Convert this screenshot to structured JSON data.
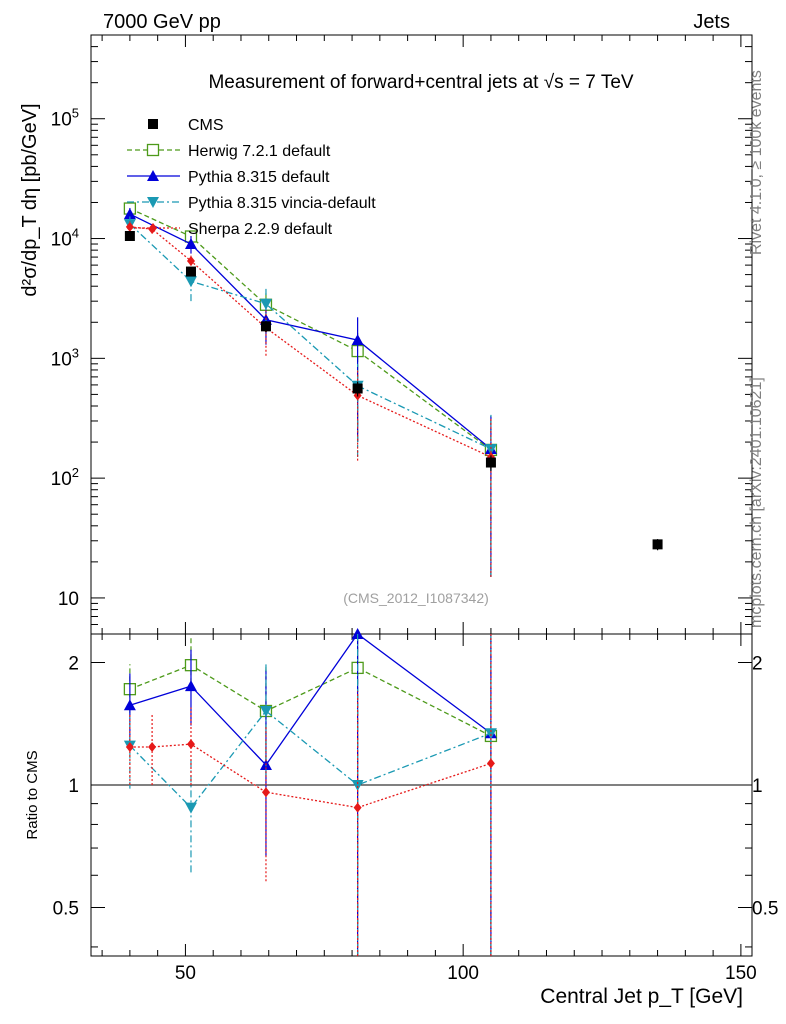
{
  "header": {
    "energy_label": "7000 GeV pp",
    "category_label": "Jets"
  },
  "side_labels": {
    "rivet": "Rivet 4.1.0, ≥ 100k events",
    "mcplots": "mcplots.cern.ch [arXiv:2401.10621]"
  },
  "watermark": "(CMS_2012_I1087342)",
  "chart_data": {
    "type": "line",
    "title": "Measurement of forward+central jets at √s = 7 TeV",
    "xlabel": "Central Jet p_T [GeV]",
    "ylabel_main": "d²σ/dp_T dη [pb/GeV]",
    "ylabel_ratio": "Ratio to CMS",
    "xlim": [
      33,
      152
    ],
    "ylim_main": [
      5,
      500000
    ],
    "ylim_ratio": [
      0.38,
      2.35
    ],
    "yscale": "log",
    "x_ticks": [
      50,
      100,
      150
    ],
    "y_ticks_main": [
      {
        "value": 10,
        "label": "10"
      },
      {
        "value": 100,
        "label": "10^2"
      },
      {
        "value": 1000,
        "label": "10^3"
      },
      {
        "value": 10000,
        "label": "10^4"
      },
      {
        "value": 100000,
        "label": "10^5"
      }
    ],
    "y_ticks_ratio": [
      {
        "value": 0.5,
        "label": "0.5"
      },
      {
        "value": 1,
        "label": "1"
      },
      {
        "value": 2,
        "label": "2"
      }
    ],
    "reference": {
      "name": "CMS",
      "color": "#000000",
      "points": [
        {
          "x": 40,
          "y": 10500,
          "err": 600
        },
        {
          "x": 51,
          "y": 5300,
          "err": 400
        },
        {
          "x": 64.5,
          "y": 1850,
          "err": 200
        },
        {
          "x": 81,
          "y": 560,
          "err": 80
        },
        {
          "x": 105,
          "y": 135,
          "err": 20
        },
        {
          "x": 135,
          "y": 28,
          "err": 3
        }
      ]
    },
    "series": [
      {
        "name": "Herwig 7.2.1 default",
        "color": "#4d9a1a",
        "marker": "open-square",
        "dash": "5,3",
        "x": [
          40,
          51,
          64.5,
          81,
          105
        ],
        "y": [
          17800,
          10400,
          2800,
          1150,
          172
        ],
        "lo": [
          15000,
          8500,
          2000,
          200,
          15
        ],
        "hi": [
          20000,
          11500,
          3600,
          1700,
          330
        ],
        "ratio": [
          1.72,
          1.97,
          1.52,
          1.94,
          1.32
        ],
        "ratio_lo": [
          1.5,
          1.7,
          1.1,
          0.35,
          0.3
        ],
        "ratio_hi": [
          1.98,
          2.3,
          1.97,
          2.35,
          2.35
        ]
      },
      {
        "name": "Pythia 8.315 default",
        "color": "#0000d9",
        "marker": "triangle-up",
        "dash": "",
        "x": [
          40,
          51,
          64.5,
          81,
          105
        ],
        "y": [
          16000,
          9000,
          2100,
          1420,
          175
        ],
        "lo": [
          13500,
          7500,
          1300,
          200,
          15
        ],
        "hi": [
          18000,
          10500,
          2900,
          2200,
          330
        ],
        "ratio": [
          1.57,
          1.75,
          1.12,
          2.35,
          1.34
        ],
        "ratio_lo": [
          1.25,
          1.4,
          0.67,
          0.38,
          0.3
        ],
        "ratio_hi": [
          1.88,
          2.15,
          1.92,
          2.35,
          2.35
        ]
      },
      {
        "name": "Pythia 8.315 vincia-default",
        "color": "#1a99b3",
        "marker": "triangle-down",
        "dash": "7,3,2,3",
        "x": [
          40,
          51,
          64.5,
          81,
          105
        ],
        "y": [
          13200,
          4400,
          2850,
          590,
          175
        ],
        "lo": [
          10000,
          3000,
          1900,
          150,
          15
        ],
        "hi": [
          15500,
          5500,
          3800,
          900,
          340
        ],
        "ratio": [
          1.25,
          0.88,
          1.52,
          1.0,
          1.34
        ],
        "ratio_lo": [
          0.98,
          0.61,
          1.05,
          0.38,
          0.3
        ],
        "ratio_hi": [
          1.5,
          1.15,
          2.0,
          2.35,
          2.35
        ]
      },
      {
        "name": "Sherpa 2.2.9 default",
        "color": "#e61a1a",
        "marker": "diamond",
        "dash": "2,2",
        "x": [
          40,
          44,
          51,
          64.5,
          81,
          105
        ],
        "y": [
          12500,
          12000,
          6500,
          1800,
          490,
          150
        ],
        "lo": [
          11000,
          11000,
          5500,
          1050,
          140,
          15
        ],
        "hi": [
          14000,
          13000,
          7500,
          2500,
          800,
          320
        ],
        "ratio": [
          1.24,
          1.24,
          1.26,
          0.96,
          0.88,
          1.13
        ],
        "ratio_lo": [
          1.0,
          1.0,
          1.0,
          0.58,
          0.38,
          0.3
        ],
        "ratio_hi": [
          1.5,
          1.5,
          1.55,
          1.4,
          1.7,
          2.35
        ]
      }
    ]
  }
}
